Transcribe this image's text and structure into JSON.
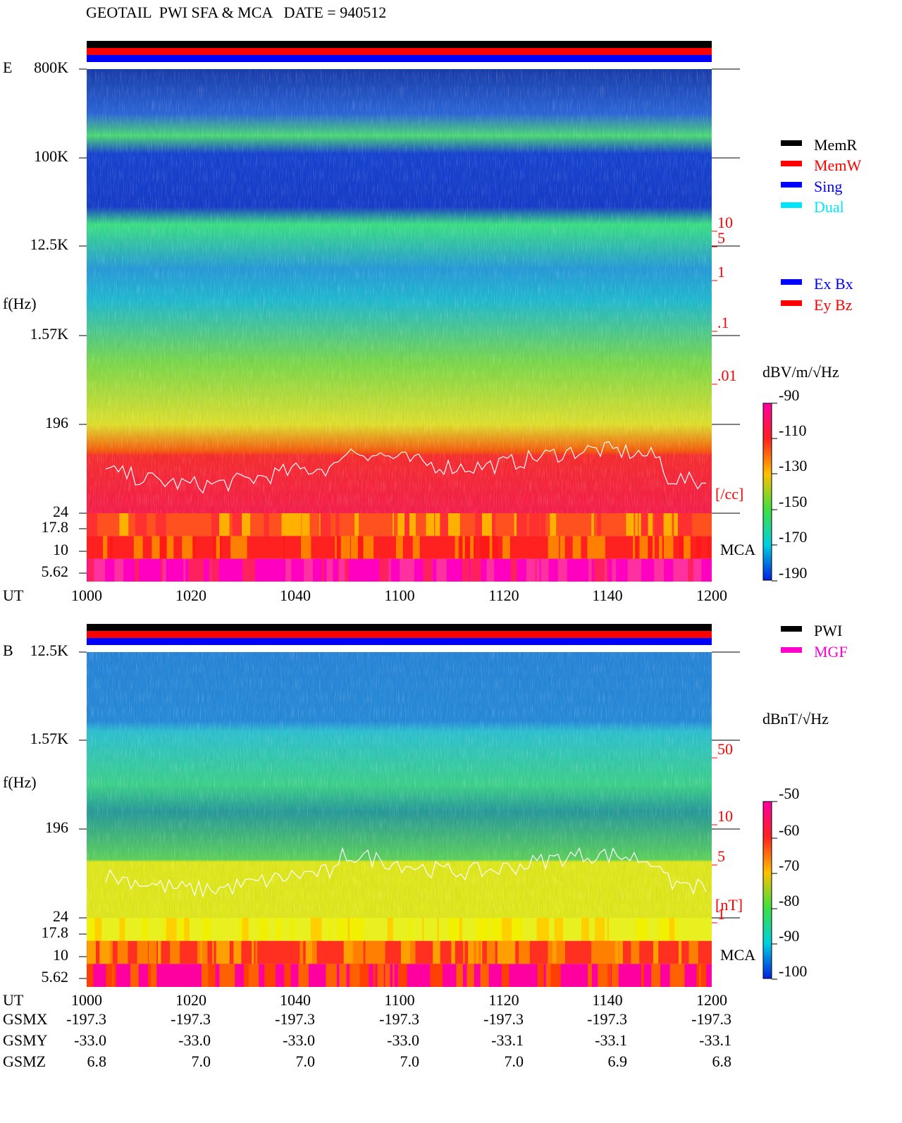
{
  "title": "GEOTAIL  PWI SFA & MCA   DATE = 940512",
  "panels": [
    {
      "label": "E",
      "ylabel": "f(Hz)",
      "xlabel": "UT",
      "yticks": [
        "800K",
        "100K",
        "12.5K",
        "1.57K",
        "196",
        "24",
        "17.8",
        "10",
        "5.62"
      ],
      "xticks": [
        "1000",
        "1020",
        "1040",
        "1100",
        "1120",
        "1140",
        "1200"
      ],
      "right_ticks": [
        "10",
        "5",
        "1",
        ".1",
        ".01"
      ],
      "right_unit": "[/cc]",
      "mca": "MCA",
      "legend": [
        {
          "name": "MemR",
          "color": "#000000"
        },
        {
          "name": "MemW",
          "color": "#ff0000"
        },
        {
          "name": "Sing",
          "color": "#0000ff"
        },
        {
          "name": "Dual",
          "color": "#00e5ff"
        },
        {
          "name": "Ex Bx",
          "color": "#0000ff"
        },
        {
          "name": "Ey Bz",
          "color": "#ff0000"
        }
      ],
      "colorbar_label": "dBV/m/√Hz",
      "colorbar_ticks": [
        "-90",
        "-110",
        "-130",
        "-150",
        "-170",
        "-190"
      ]
    },
    {
      "label": "B",
      "ylabel": "f(Hz)",
      "xlabel": "UT",
      "yticks": [
        "12.5K",
        "1.57K",
        "196",
        "24",
        "17.8",
        "10",
        "5.62"
      ],
      "xticks": [
        "1000",
        "1020",
        "1040",
        "1100",
        "1120",
        "1140",
        "1200"
      ],
      "right_ticks": [
        "50",
        "10",
        "5",
        "1"
      ],
      "right_unit": "[nT]",
      "mca": "MCA",
      "legend": [
        {
          "name": "PWI",
          "color": "#000000"
        },
        {
          "name": "MGF",
          "color": "#ff00cc"
        }
      ],
      "colorbar_label": "dBnT/√Hz",
      "colorbar_ticks": [
        "-50",
        "-60",
        "-70",
        "-80",
        "-90",
        "-100"
      ]
    }
  ],
  "ephemeris": [
    {
      "name": "GSMX",
      "values": [
        "-197.3",
        "-197.3",
        "-197.3",
        "-197.3",
        "-197.3",
        "-197.3",
        "-197.3"
      ]
    },
    {
      "name": "GSMY",
      "values": [
        "-33.0",
        "-33.0",
        "-33.0",
        "-33.0",
        "-33.1",
        "-33.1",
        "-33.1"
      ]
    },
    {
      "name": "GSMZ",
      "values": [
        "6.8",
        "7.0",
        "7.0",
        "7.0",
        "7.0",
        "6.9",
        "6.8"
      ]
    }
  ]
}
